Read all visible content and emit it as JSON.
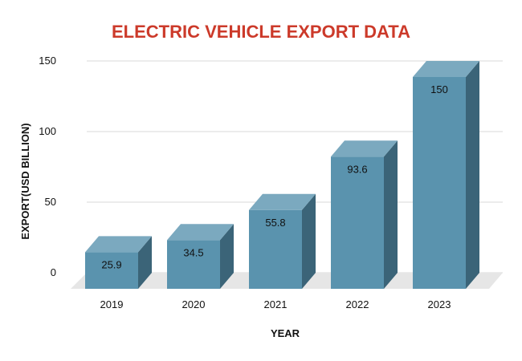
{
  "chart_data": {
    "type": "bar",
    "title": "ELECTRIC VEHICLE EXPORT DATA",
    "xlabel": "YEAR",
    "ylabel": "EXPORT(USD BILLION)",
    "categories": [
      "2019",
      "2020",
      "2021",
      "2022",
      "2023"
    ],
    "values": [
      25.9,
      34.5,
      55.8,
      93.6,
      150
    ],
    "value_labels": [
      "25.9",
      "34.5",
      "55.8",
      "93.6",
      "150"
    ],
    "ylim": [
      0,
      150
    ],
    "yticks": [
      0,
      50,
      100,
      150
    ],
    "ytick_labels": [
      "0",
      "50",
      "100",
      "150"
    ],
    "grid": true,
    "style": "3d-bar",
    "colors": {
      "title": "#cc3a2a",
      "bar_front": "#5a93ae",
      "bar_top": "#7ba9bf",
      "bar_side": "#3b6478",
      "floor": "#e6e6e6",
      "grid": "#d9d9d9"
    }
  }
}
